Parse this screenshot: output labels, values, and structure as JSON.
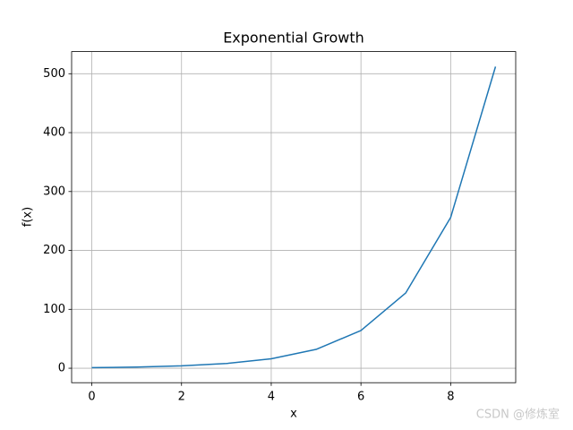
{
  "chart_data": {
    "type": "line",
    "title": "Exponential Growth",
    "xlabel": "x",
    "ylabel": "f(x)",
    "x": [
      0,
      1,
      2,
      3,
      4,
      5,
      6,
      7,
      8,
      9
    ],
    "series": [
      {
        "name": "f(x)",
        "color": "#1f77b4",
        "values": [
          1,
          2,
          4,
          8,
          16,
          32,
          64,
          128,
          256,
          512
        ]
      }
    ],
    "xlim": [
      -0.45,
      9.45
    ],
    "xticks": [
      0,
      2,
      4,
      6,
      8
    ],
    "ylim": [
      -24.55,
      537.55
    ],
    "yticks": [
      0,
      100,
      200,
      300,
      400,
      500
    ],
    "grid": true,
    "watermark": "CSDN @修炼室"
  }
}
